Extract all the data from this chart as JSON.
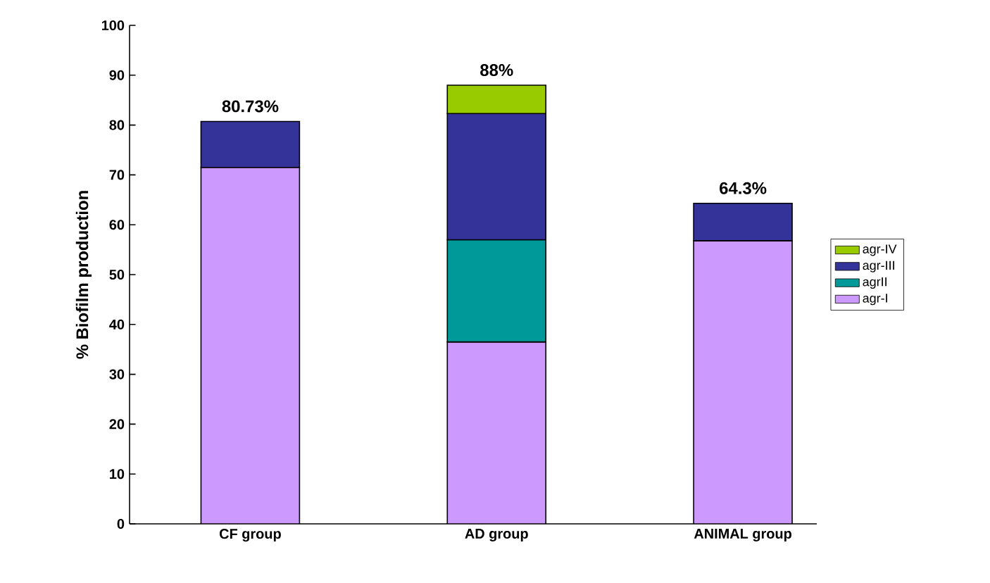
{
  "chart_data": {
    "type": "bar",
    "stacked": true,
    "ylabel": "% Biofilm production",
    "categories": [
      "CF group",
      "AD group",
      "ANIMAL group"
    ],
    "series": [
      {
        "name": "agr-I",
        "color": "#cc99ff",
        "values": [
          71.5,
          36.5,
          56.8
        ]
      },
      {
        "name": "agrII",
        "color": "#009999",
        "values": [
          null,
          20.5,
          null
        ]
      },
      {
        "name": "agr-III",
        "color": "#333399",
        "values": [
          9.23,
          25.3,
          7.5
        ]
      },
      {
        "name": "agr-IV",
        "color": "#99cc00",
        "values": [
          null,
          5.7,
          null
        ]
      }
    ],
    "totals": [
      "80.73%",
      "88%",
      "64.3%"
    ],
    "ylim": [
      0,
      100
    ],
    "yticks": [
      0,
      10,
      20,
      30,
      40,
      50,
      60,
      70,
      80,
      90,
      100
    ],
    "legend": "right",
    "grid": false
  }
}
